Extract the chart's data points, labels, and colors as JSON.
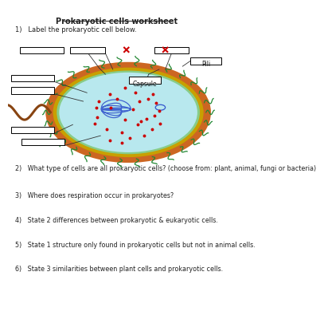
{
  "title": "Prokaryotic cells worksheet",
  "q1": "1)   Label the prokaryotic cell below.",
  "q2": "2)   What type of cells are all prokaryotic cells? (choose from: plant, animal, fungi or bacteria)",
  "q3": "3)   Where does respiration occur in prokaryotes?",
  "q4": "4)   State 2 differences between prokaryotic & eukaryotic cells.",
  "q5": "5)   State 1 structure only found in prokaryotic cells but not in animal cells.",
  "q6": "6)   State 3 similarities between plant cells and prokaryotic cells.",
  "bg_color": "#ffffff",
  "cell_outer_color": "#cc6622",
  "cell_wall_color": "#c8a000",
  "cell_membrane_color": "#88cc88",
  "cytoplasm_color": "#b8e8ee",
  "dna_color": "#3355cc",
  "ribosome_color": "#cc0000",
  "pili_color": "#228833",
  "flagellum_color": "#884411",
  "label_box_color": "#ffffff",
  "label_box_edge": "#000000",
  "capsule_label": "Capsule",
  "pili_label": "Pili",
  "cross_color": "#cc0000",
  "line_color": "#333333"
}
